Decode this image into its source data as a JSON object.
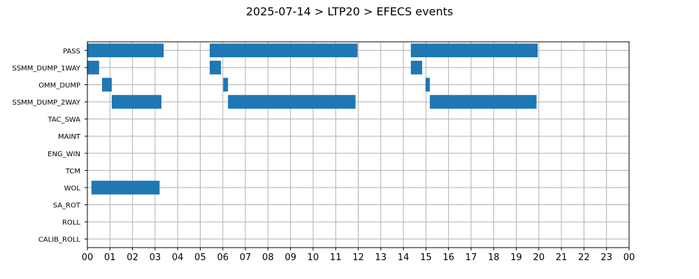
{
  "chart_data": {
    "type": "bar",
    "orientation": "horizontal-timeline",
    "title": "2025-07-14 > LTP20 > EFECS events",
    "xlabel": "",
    "ylabel": "",
    "grid": true,
    "bar_color": "#1f77b4",
    "xlim": [
      0,
      24
    ],
    "xtick_labels": [
      "00",
      "01",
      "02",
      "03",
      "04",
      "05",
      "06",
      "07",
      "08",
      "09",
      "10",
      "11",
      "12",
      "13",
      "14",
      "15",
      "16",
      "17",
      "18",
      "19",
      "20",
      "21",
      "22",
      "23",
      "00"
    ],
    "categories": [
      "PASS",
      "SSMM_DUMP_1WAY",
      "OMM_DUMP",
      "SSMM_DUMP_2WAY",
      "TAC_SWA",
      "MAINT",
      "ENG_WIN",
      "TCM",
      "WOL",
      "SA_ROT",
      "ROLL",
      "CALIB_ROLL"
    ],
    "events": [
      {
        "category": "PASS",
        "intervals": [
          [
            0.0,
            3.38
          ],
          [
            5.42,
            11.97
          ],
          [
            14.33,
            19.95
          ]
        ]
      },
      {
        "category": "SSMM_DUMP_1WAY",
        "intervals": [
          [
            0.0,
            0.52
          ],
          [
            5.42,
            5.92
          ],
          [
            14.33,
            14.83
          ]
        ]
      },
      {
        "category": "OMM_DUMP",
        "intervals": [
          [
            0.65,
            1.08
          ],
          [
            6.02,
            6.23
          ],
          [
            14.98,
            15.17
          ]
        ]
      },
      {
        "category": "SSMM_DUMP_2WAY",
        "intervals": [
          [
            1.08,
            3.28
          ],
          [
            6.23,
            11.88
          ],
          [
            15.17,
            19.9
          ]
        ]
      },
      {
        "category": "TAC_SWA",
        "intervals": []
      },
      {
        "category": "MAINT",
        "intervals": []
      },
      {
        "category": "ENG_WIN",
        "intervals": []
      },
      {
        "category": "TCM",
        "intervals": []
      },
      {
        "category": "WOL",
        "intervals": [
          [
            0.18,
            3.2
          ]
        ]
      },
      {
        "category": "SA_ROT",
        "intervals": []
      },
      {
        "category": "ROLL",
        "intervals": []
      },
      {
        "category": "CALIB_ROLL",
        "intervals": []
      }
    ]
  }
}
